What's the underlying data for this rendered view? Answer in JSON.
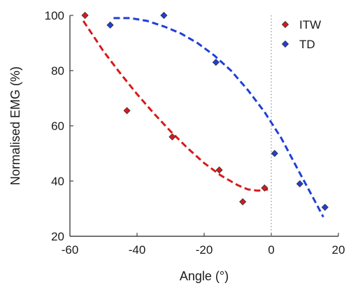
{
  "chart_data": {
    "type": "scatter",
    "xlabel": "Angle (°)",
    "ylabel": "Normalised EMG (%)",
    "xlim": [
      -60,
      20
    ],
    "ylim": [
      20,
      100
    ],
    "xticks": [
      -60,
      -40,
      -20,
      0,
      20
    ],
    "yticks": [
      20,
      40,
      60,
      80,
      100
    ],
    "grid": false,
    "legend_position": "top-right",
    "reference_line": {
      "x": 0,
      "style": "dotted",
      "color": "#8c8c8c"
    },
    "series": [
      {
        "name": "ITW",
        "color": "#d7191c",
        "marker": "diamond",
        "x": [
          -55.5,
          -43,
          -29.5,
          -15.5,
          -8.5,
          -2
        ],
        "y": [
          100,
          65.5,
          56,
          44,
          32.5,
          37.5
        ],
        "trend": {
          "style": "dashed",
          "x": [
            -56,
            -50,
            -45,
            -40,
            -35,
            -30,
            -25,
            -20,
            -15,
            -10,
            -7,
            -4,
            -1
          ],
          "y": [
            98,
            87,
            79,
            71.5,
            64.5,
            58,
            52,
            46.5,
            42,
            38.5,
            37,
            36.5,
            37
          ]
        }
      },
      {
        "name": "TD",
        "color": "#1f3fd8",
        "marker": "diamond",
        "x": [
          -48,
          -32,
          -16.5,
          1,
          8.5,
          16
        ],
        "y": [
          96.5,
          100,
          83,
          50,
          39,
          30.5
        ],
        "trend": {
          "style": "dashed",
          "x": [
            -47,
            -42,
            -37,
            -32,
            -27,
            -22,
            -17,
            -12,
            -7,
            -2,
            3,
            8,
            12,
            15.5
          ],
          "y": [
            99,
            99,
            98,
            96,
            93.5,
            90,
            85.5,
            80,
            73,
            65,
            55.5,
            44,
            35,
            27
          ]
        }
      }
    ]
  }
}
